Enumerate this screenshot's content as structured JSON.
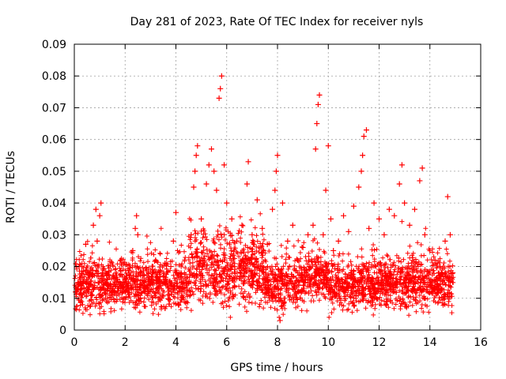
{
  "chart_data": {
    "type": "scatter",
    "title": "Day 281 of 2023, Rate Of TEC Index for receiver nyls",
    "xlabel": "GPS time / hours",
    "ylabel": "ROTI / TECUs",
    "xlim": [
      0,
      16
    ],
    "ylim": [
      0,
      0.09
    ],
    "x_ticks": [
      "0",
      "2",
      "4",
      "6",
      "8",
      "10",
      "12",
      "14",
      "16"
    ],
    "y_ticks": [
      "0",
      "0.01",
      "0.02",
      "0.03",
      "0.04",
      "0.05",
      "0.06",
      "0.07",
      "0.08",
      "0.09"
    ],
    "grid": true,
    "marker": "+",
    "marker_color": "#ff0000",
    "series": [
      {
        "name": "ROTI",
        "x": [
          0.05,
          0.15,
          0.3,
          0.45,
          0.6,
          0.75,
          0.85,
          0.9,
          1.0,
          1.05,
          1.1,
          1.3,
          1.5,
          1.7,
          1.9,
          2.1,
          2.3,
          2.4,
          2.45,
          2.5,
          2.6,
          2.8,
          3.0,
          3.2,
          3.4,
          3.6,
          3.8,
          3.9,
          4.0,
          4.2,
          4.4,
          4.6,
          4.7,
          4.75,
          4.8,
          4.85,
          5.0,
          5.2,
          5.3,
          5.4,
          5.5,
          5.6,
          5.7,
          5.75,
          5.8,
          5.9,
          6.0,
          6.2,
          6.4,
          6.6,
          6.8,
          6.85,
          7.0,
          7.2,
          7.4,
          7.6,
          7.8,
          7.9,
          7.95,
          8.0,
          8.1,
          8.2,
          8.4,
          8.6,
          8.8,
          9.0,
          9.2,
          9.4,
          9.5,
          9.55,
          9.6,
          9.65,
          9.8,
          9.9,
          10.0,
          10.1,
          10.2,
          10.4,
          10.6,
          10.8,
          11.0,
          11.2,
          11.3,
          11.35,
          11.4,
          11.5,
          11.6,
          11.8,
          12.0,
          12.2,
          12.4,
          12.6,
          12.8,
          12.9,
          13.0,
          13.2,
          13.4,
          13.6,
          13.7,
          13.8,
          14.0,
          14.2,
          14.4,
          14.6,
          14.7,
          14.8,
          14.9
        ],
        "y": [
          0.012,
          0.015,
          0.02,
          0.027,
          0.018,
          0.033,
          0.038,
          0.028,
          0.036,
          0.04,
          0.018,
          0.014,
          0.013,
          0.016,
          0.012,
          0.014,
          0.025,
          0.032,
          0.036,
          0.03,
          0.018,
          0.013,
          0.015,
          0.022,
          0.014,
          0.016,
          0.02,
          0.028,
          0.037,
          0.018,
          0.015,
          0.03,
          0.045,
          0.05,
          0.055,
          0.058,
          0.035,
          0.046,
          0.052,
          0.057,
          0.05,
          0.044,
          0.073,
          0.076,
          0.08,
          0.052,
          0.04,
          0.035,
          0.028,
          0.033,
          0.046,
          0.053,
          0.03,
          0.041,
          0.032,
          0.027,
          0.038,
          0.044,
          0.05,
          0.055,
          0.003,
          0.04,
          0.028,
          0.033,
          0.022,
          0.026,
          0.03,
          0.033,
          0.057,
          0.065,
          0.071,
          0.074,
          0.03,
          0.044,
          0.058,
          0.035,
          0.025,
          0.028,
          0.036,
          0.031,
          0.039,
          0.045,
          0.05,
          0.055,
          0.061,
          0.063,
          0.032,
          0.04,
          0.035,
          0.03,
          0.038,
          0.036,
          0.046,
          0.052,
          0.04,
          0.033,
          0.038,
          0.047,
          0.051,
          0.03,
          0.025,
          0.022,
          0.02,
          0.028,
          0.042,
          0.03,
          0.018
        ]
      }
    ]
  }
}
